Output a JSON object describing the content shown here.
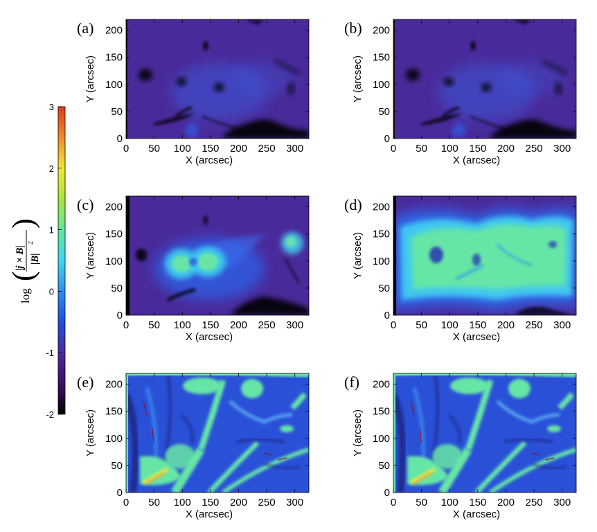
{
  "figure": {
    "colorbar": {
      "ticks": [
        "3",
        "2",
        "1",
        "0",
        "-1",
        "-2"
      ],
      "label_prefix": "log",
      "label_numerator": "|j × B|",
      "label_denominator": "|B|",
      "label_exponent": "2",
      "colors": [
        "#000000",
        "#3a0a5a",
        "#4b2aa0",
        "#1f4fe0",
        "#2f8ff0",
        "#3fd8f0",
        "#5fe89a",
        "#a8e63a",
        "#f4e53a",
        "#f28a2a",
        "#e23a1e"
      ]
    },
    "panels": [
      {
        "tag": "(a)",
        "xlabel": "X (arcsec)",
        "ylabel": "Y (arcsec)",
        "xticks": [
          "0",
          "50",
          "100",
          "150",
          "200",
          "250",
          "300"
        ],
        "yticks": [
          "0",
          "50",
          "100",
          "150",
          "200"
        ]
      },
      {
        "tag": "(b)",
        "xlabel": "X (arcsec)",
        "ylabel": "Y (arcsec)",
        "xticks": [
          "0",
          "50",
          "100",
          "150",
          "200",
          "250",
          "300"
        ],
        "yticks": [
          "0",
          "50",
          "100",
          "150",
          "200"
        ]
      },
      {
        "tag": "(c)",
        "xlabel": "X (arcsec)",
        "ylabel": "Y (arcsec)",
        "xticks": [
          "0",
          "50",
          "100",
          "150",
          "200",
          "250",
          "300"
        ],
        "yticks": [
          "0",
          "50",
          "100",
          "150",
          "200"
        ]
      },
      {
        "tag": "(d)",
        "xlabel": "X (arcsec)",
        "ylabel": "Y (arcsec)",
        "xticks": [
          "0",
          "50",
          "100",
          "150",
          "200",
          "250",
          "300"
        ],
        "yticks": [
          "0",
          "50",
          "100",
          "150",
          "200"
        ]
      },
      {
        "tag": "(e)",
        "xlabel": "X (arcsec)",
        "ylabel": "Y (arcsec)",
        "xticks": [
          "0",
          "50",
          "100",
          "150",
          "200",
          "250",
          "300"
        ],
        "yticks": [
          "0",
          "50",
          "100",
          "150",
          "200"
        ]
      },
      {
        "tag": "(f)",
        "xlabel": "X (arcsec)",
        "ylabel": "Y (arcsec)",
        "xticks": [
          "0",
          "50",
          "100",
          "150",
          "200",
          "250",
          "300"
        ],
        "yticks": [
          "0",
          "50",
          "100",
          "150",
          "200"
        ]
      }
    ]
  }
}
